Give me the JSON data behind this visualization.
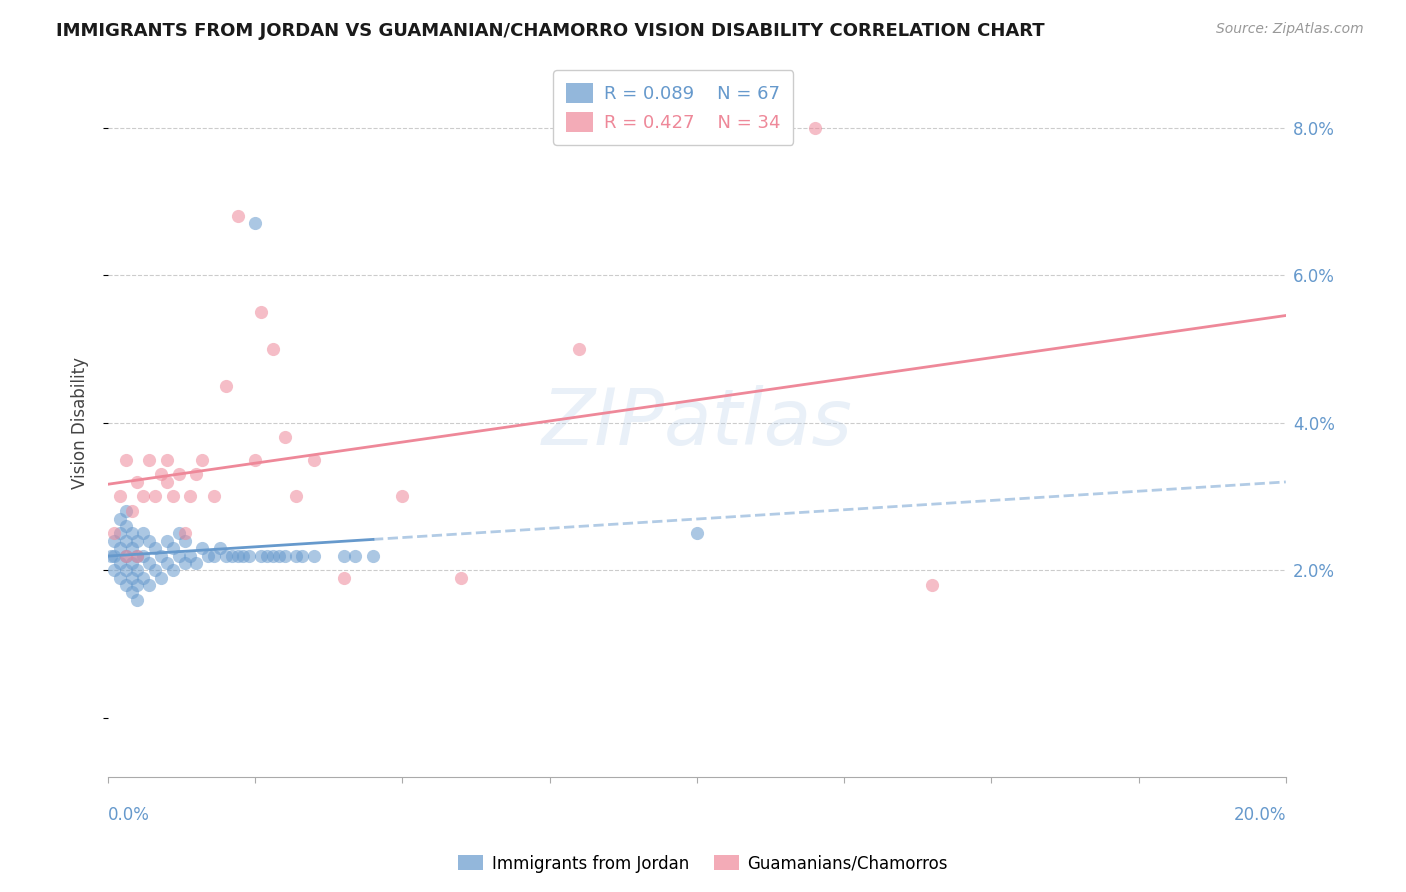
{
  "title": "IMMIGRANTS FROM JORDAN VS GUAMANIAN/CHAMORRO VISION DISABILITY CORRELATION CHART",
  "source": "Source: ZipAtlas.com",
  "ylabel": "Vision Disability",
  "ytick_values": [
    0.02,
    0.04,
    0.06,
    0.08
  ],
  "ytick_labels": [
    "2.0%",
    "4.0%",
    "6.0%",
    "8.0%"
  ],
  "xlim": [
    0.0,
    0.2
  ],
  "ylim": [
    -0.008,
    0.088
  ],
  "legend_entry1": {
    "R": "0.089",
    "N": "67"
  },
  "legend_entry2": {
    "R": "0.427",
    "N": "34"
  },
  "blue_color": "#6699cc",
  "pink_color": "#ee8899",
  "watermark": "ZIPatlas",
  "jordan_x": [
    0.0005,
    0.001,
    0.001,
    0.001,
    0.002,
    0.002,
    0.002,
    0.002,
    0.002,
    0.003,
    0.003,
    0.003,
    0.003,
    0.003,
    0.003,
    0.004,
    0.004,
    0.004,
    0.004,
    0.004,
    0.005,
    0.005,
    0.005,
    0.005,
    0.005,
    0.006,
    0.006,
    0.006,
    0.007,
    0.007,
    0.007,
    0.008,
    0.008,
    0.009,
    0.009,
    0.01,
    0.01,
    0.011,
    0.011,
    0.012,
    0.012,
    0.013,
    0.013,
    0.014,
    0.015,
    0.016,
    0.017,
    0.018,
    0.019,
    0.02,
    0.021,
    0.022,
    0.023,
    0.024,
    0.025,
    0.026,
    0.027,
    0.028,
    0.029,
    0.03,
    0.032,
    0.033,
    0.035,
    0.04,
    0.042,
    0.045,
    0.1
  ],
  "jordan_y": [
    0.022,
    0.02,
    0.022,
    0.024,
    0.019,
    0.021,
    0.023,
    0.025,
    0.027,
    0.018,
    0.02,
    0.022,
    0.024,
    0.026,
    0.028,
    0.017,
    0.019,
    0.021,
    0.023,
    0.025,
    0.016,
    0.018,
    0.02,
    0.022,
    0.024,
    0.019,
    0.022,
    0.025,
    0.018,
    0.021,
    0.024,
    0.02,
    0.023,
    0.019,
    0.022,
    0.021,
    0.024,
    0.02,
    0.023,
    0.022,
    0.025,
    0.021,
    0.024,
    0.022,
    0.021,
    0.023,
    0.022,
    0.022,
    0.023,
    0.022,
    0.022,
    0.022,
    0.022,
    0.022,
    0.067,
    0.022,
    0.022,
    0.022,
    0.022,
    0.022,
    0.022,
    0.022,
    0.022,
    0.022,
    0.022,
    0.022,
    0.025
  ],
  "guam_x": [
    0.001,
    0.002,
    0.003,
    0.003,
    0.004,
    0.005,
    0.005,
    0.006,
    0.007,
    0.008,
    0.009,
    0.01,
    0.01,
    0.011,
    0.012,
    0.013,
    0.014,
    0.015,
    0.016,
    0.018,
    0.02,
    0.022,
    0.025,
    0.026,
    0.028,
    0.03,
    0.032,
    0.035,
    0.04,
    0.05,
    0.06,
    0.08,
    0.12,
    0.14
  ],
  "guam_y": [
    0.025,
    0.03,
    0.022,
    0.035,
    0.028,
    0.032,
    0.022,
    0.03,
    0.035,
    0.03,
    0.033,
    0.032,
    0.035,
    0.03,
    0.033,
    0.025,
    0.03,
    0.033,
    0.035,
    0.03,
    0.045,
    0.068,
    0.035,
    0.055,
    0.05,
    0.038,
    0.03,
    0.035,
    0.019,
    0.03,
    0.019,
    0.05,
    0.08,
    0.018
  ]
}
